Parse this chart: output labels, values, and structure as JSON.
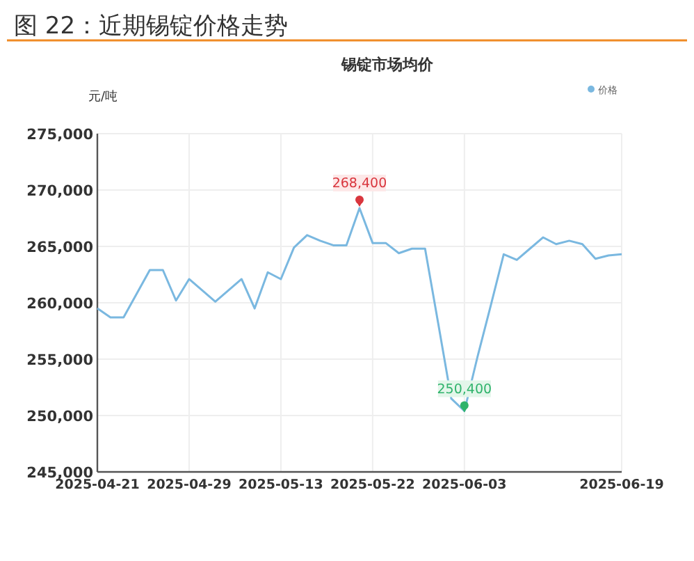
{
  "chart_data": {
    "type": "line",
    "title": "图 22：近期锡锭价格走势",
    "subtitle": "锡锭市场均价",
    "ylabel": "元/吨",
    "categories": [
      "2025-04-21",
      null,
      null,
      null,
      null,
      null,
      null,
      "2025-04-29",
      null,
      null,
      null,
      null,
      null,
      null,
      "2025-05-13",
      null,
      null,
      null,
      null,
      null,
      null,
      "2025-05-22",
      null,
      null,
      null,
      null,
      null,
      null,
      "2025-06-03",
      null,
      null,
      null,
      null,
      null,
      null,
      null,
      null,
      null,
      null,
      null,
      "2025-06-19"
    ],
    "series": [
      {
        "name": "价格",
        "color": "#7ab8e0",
        "values": [
          259500,
          258700,
          258700,
          260800,
          262900,
          262900,
          260200,
          262100,
          261100,
          260100,
          261100,
          262100,
          259500,
          262700,
          262100,
          264900,
          266000,
          265500,
          265100,
          265100,
          268400,
          265300,
          265300,
          264400,
          264800,
          264800,
          258200,
          251500,
          250400,
          255200,
          259700,
          264300,
          263800,
          264800,
          265800,
          265200,
          265500,
          265200,
          263900,
          264200,
          264300
        ]
      }
    ],
    "ylim": [
      245000,
      275000
    ],
    "yticks": [
      {
        "value": 245000,
        "label": "245,000"
      },
      {
        "value": 250000,
        "label": "250,000"
      },
      {
        "value": 255000,
        "label": "255,000"
      },
      {
        "value": 260000,
        "label": "260,000"
      },
      {
        "value": 265000,
        "label": "265,000"
      },
      {
        "value": 270000,
        "label": "270,000"
      },
      {
        "value": 275000,
        "label": "275,000"
      }
    ],
    "annotations": [
      {
        "text": "268,400",
        "y": 268400
      },
      {
        "text": "250,400",
        "y": 250400
      }
    ],
    "grid": true,
    "legend": "top right",
    "marker": "none",
    "line_style": "solid"
  }
}
